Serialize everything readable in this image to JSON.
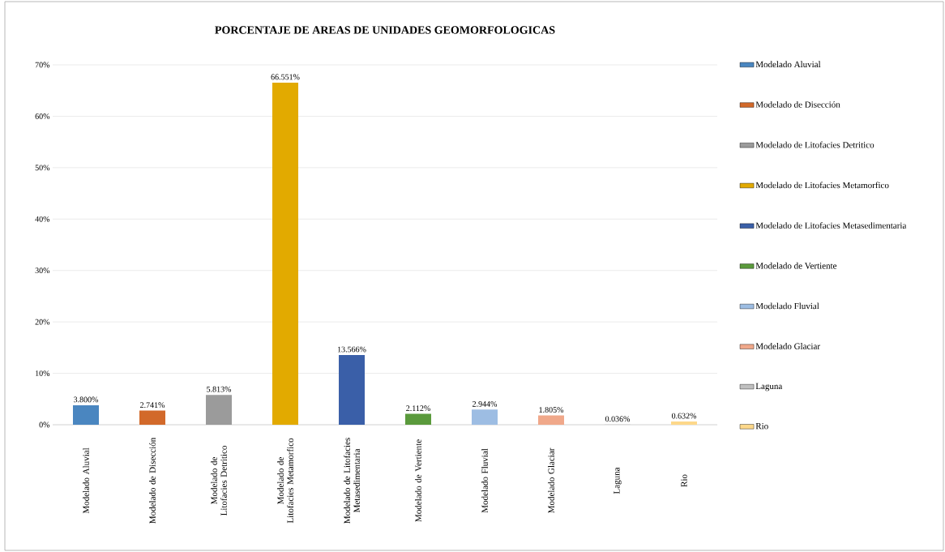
{
  "chart_data": {
    "type": "bar",
    "title": "PORCENTAJE DE AREAS DE UNIDADES GEOMORFOLOGICAS",
    "categories": [
      "Modelado Aluvial",
      "Modelado de Disección",
      "Modelado de Litofacies Detritico",
      "Modelado de Litofacies Metamorfico",
      "Modelado de Litofacies Metasedimentaria",
      "Modelado de Vertiente",
      "Modelado Fluvial",
      "Modelado Glaciar",
      "Laguna",
      "Rio"
    ],
    "series": [
      {
        "name": "Modelado Aluvial",
        "color": "#4a86c0",
        "values": [
          3.8,
          null,
          null,
          null,
          null,
          null,
          null,
          null,
          null,
          null
        ],
        "value_labels": [
          "3.800%",
          null,
          null,
          null,
          null,
          null,
          null,
          null,
          null,
          null
        ]
      },
      {
        "name": "Modelado de Disección",
        "color": "#d2692a",
        "values": [
          null,
          2.741,
          null,
          null,
          null,
          null,
          null,
          null,
          null,
          null
        ],
        "value_labels": [
          null,
          "2.741%",
          null,
          null,
          null,
          null,
          null,
          null,
          null,
          null
        ]
      },
      {
        "name": "Modelado de Litofacies Detritico",
        "color": "#9b9b9b",
        "values": [
          null,
          null,
          5.813,
          null,
          null,
          null,
          null,
          null,
          null,
          null
        ],
        "value_labels": [
          null,
          null,
          "5.813%",
          null,
          null,
          null,
          null,
          null,
          null,
          null
        ]
      },
      {
        "name": "Modelado de Litofacies Metamorfico",
        "color": "#e2aa00",
        "values": [
          null,
          null,
          null,
          66.551,
          null,
          null,
          null,
          null,
          null,
          null
        ],
        "value_labels": [
          null,
          null,
          null,
          "66.551%",
          null,
          null,
          null,
          null,
          null,
          null
        ]
      },
      {
        "name": "Modelado de Litofacies Metasedimentaria",
        "color": "#3a5fa8",
        "values": [
          null,
          null,
          null,
          null,
          13.566,
          null,
          null,
          null,
          null,
          null
        ],
        "value_labels": [
          null,
          null,
          null,
          null,
          "13.566%",
          null,
          null,
          null,
          null,
          null
        ]
      },
      {
        "name": "Modelado de Vertiente",
        "color": "#5a9a3c",
        "values": [
          null,
          null,
          null,
          null,
          null,
          2.112,
          null,
          null,
          null,
          null
        ],
        "value_labels": [
          null,
          null,
          null,
          null,
          null,
          "2.112%",
          null,
          null,
          null,
          null
        ]
      },
      {
        "name": "Modelado Fluvial",
        "color": "#9dbde3",
        "values": [
          null,
          null,
          null,
          null,
          null,
          null,
          2.944,
          null,
          null,
          null
        ],
        "value_labels": [
          null,
          null,
          null,
          null,
          null,
          null,
          "2.944%",
          null,
          null,
          null
        ]
      },
      {
        "name": "Modelado Glaciar",
        "color": "#f0a88a",
        "values": [
          null,
          null,
          null,
          null,
          null,
          null,
          null,
          1.805,
          null,
          null
        ],
        "value_labels": [
          null,
          null,
          null,
          null,
          null,
          null,
          null,
          "1.805%",
          null,
          null
        ]
      },
      {
        "name": "Laguna",
        "color": "#c0c0c0",
        "values": [
          null,
          null,
          null,
          null,
          null,
          null,
          null,
          null,
          0.036,
          null
        ],
        "value_labels": [
          null,
          null,
          null,
          null,
          null,
          null,
          null,
          null,
          "0.036%",
          null
        ]
      },
      {
        "name": "Rio",
        "color": "#fdd88a",
        "values": [
          null,
          null,
          null,
          null,
          null,
          null,
          null,
          null,
          null,
          0.632
        ],
        "value_labels": [
          null,
          null,
          null,
          null,
          null,
          null,
          null,
          null,
          null,
          "0.632%"
        ]
      }
    ],
    "ylim": [
      0,
      70
    ],
    "yticks": [
      {
        "value": 0,
        "label": "0%"
      },
      {
        "value": 10,
        "label": "10%"
      },
      {
        "value": 20,
        "label": "20%"
      },
      {
        "value": 30,
        "label": "30%"
      },
      {
        "value": 40,
        "label": "40%"
      },
      {
        "value": 50,
        "label": "50%"
      },
      {
        "value": 60,
        "label": "60%"
      },
      {
        "value": 70,
        "label": "70%"
      }
    ],
    "grid": "y",
    "legend": "right"
  }
}
